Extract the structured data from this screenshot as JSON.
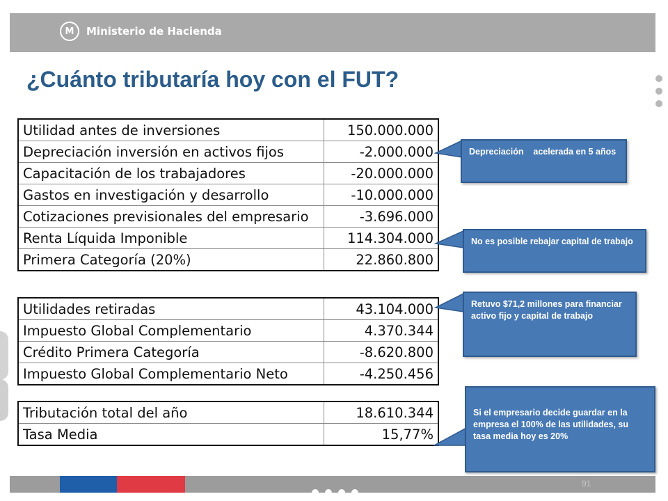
{
  "header": {
    "logo_text": "Ministerio de Hacienda",
    "logo_mark": "M"
  },
  "title": "¿Cuánto tributaría hoy con el FUT?",
  "tables": [
    {
      "rows": [
        {
          "label": "Utilidad antes de inversiones",
          "value": "150.000.000"
        },
        {
          "label": "Depreciación inversión en activos fijos",
          "value": "-2.000.000"
        },
        {
          "label": "Capacitación de los trabajadores",
          "value": "-20.000.000"
        },
        {
          "label": "Gastos en investigación y desarrollo",
          "value": "-10.000.000"
        },
        {
          "label": "Cotizaciones previsionales del empresario",
          "value": "-3.696.000"
        },
        {
          "label": "Renta Líquida Imponible",
          "value": "114.304.000"
        },
        {
          "label": "Primera Categoría (20%)",
          "value": "22.860.800"
        }
      ]
    },
    {
      "rows": [
        {
          "label": "Utilidades retiradas",
          "value": "43.104.000"
        },
        {
          "label": "Impuesto Global Complementario",
          "value": "4.370.344"
        },
        {
          "label": "Crédito Primera Categoría",
          "value": "-8.620.800"
        },
        {
          "label": "Impuesto Global Complementario Neto",
          "value": "-4.250.456"
        }
      ]
    },
    {
      "rows": [
        {
          "label": "Tributación total del año",
          "value": "18.610.344"
        },
        {
          "label": "Tasa Media",
          "value": "15,77%"
        }
      ]
    }
  ],
  "callouts": [
    "Depreciación    acelerada en 5 años",
    "No es posible rebajar capital de trabajo",
    "Retuvo $71,2 millones para financiar activo fijo y capital de trabajo",
    "Si el empresario decide guardar en la empresa el 100% de las utilidades, su tasa media hoy es 20%"
  ],
  "footer": {
    "page_number": "91"
  },
  "colors": {
    "title": "#2b5c8a",
    "callout": "#4779b5",
    "header_bar": "#a9a9a9",
    "flag_blue": "#1f5ea8",
    "flag_red": "#e03a44"
  }
}
